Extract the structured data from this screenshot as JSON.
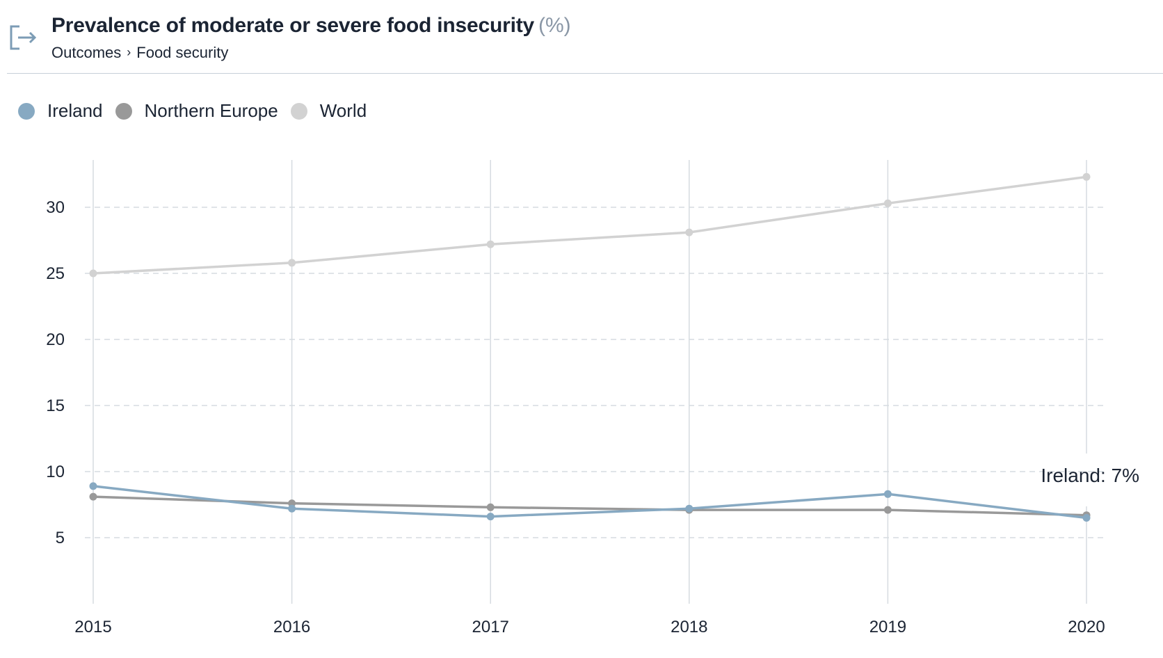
{
  "header": {
    "title": "Prevalence of moderate or severe food insecurity",
    "unit": "(%)",
    "breadcrumb": [
      "Outcomes",
      "Food security"
    ],
    "breadcrumb_separator": "›",
    "icon": "exit-icon"
  },
  "tooltip": {
    "text": "Ireland: 7%"
  },
  "colors": {
    "Ireland": "#87a9c2",
    "Northern Europe": "#999999",
    "World": "#d2d2d2",
    "grid": "#d6dbe0",
    "icon": "#7c9cb5"
  },
  "chart_data": {
    "type": "line",
    "title": "Prevalence of moderate or severe food insecurity",
    "ylabel": "",
    "xlabel": "",
    "x": [
      2015,
      2016,
      2017,
      2018,
      2019,
      2020
    ],
    "yticks": [
      5,
      10,
      15,
      20,
      25,
      30
    ],
    "ylim": [
      0,
      33
    ],
    "grid": "horizontal dashed, vertical solid",
    "legend_position": "top-left",
    "series": [
      {
        "name": "Ireland",
        "values": [
          8.9,
          7.2,
          6.6,
          7.2,
          8.3,
          6.5
        ]
      },
      {
        "name": "Northern Europe",
        "values": [
          8.1,
          7.6,
          7.3,
          7.1,
          7.1,
          6.7
        ]
      },
      {
        "name": "World",
        "values": [
          25.0,
          25.8,
          27.2,
          28.1,
          30.3,
          32.3
        ]
      }
    ]
  }
}
